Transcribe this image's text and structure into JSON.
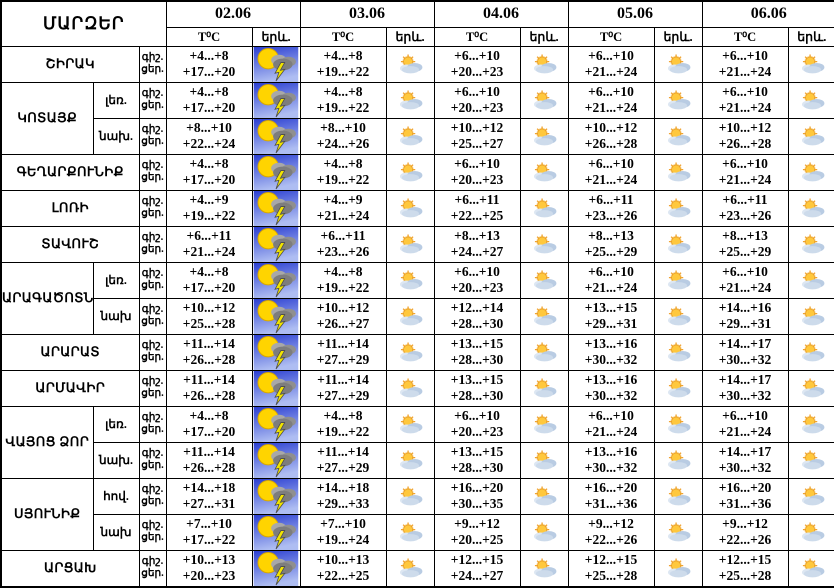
{
  "page_title": "Regional weather forecast table (Armenia)",
  "colors": {
    "background": "#ffffff",
    "border": "#000000",
    "text": "#000000",
    "thunder_icon": {
      "sky_top": "#2b3fd1",
      "sky_bottom": "#aebdf2",
      "sun": "#ffd400",
      "cloud_light": "#a8a8a8",
      "cloud_dark": "#7d7d7d",
      "lightning": "#f2e400"
    },
    "partly_icon": {
      "sun": "#ffc83d",
      "rays": "#f0a230",
      "cloud_light": "#dde7f2",
      "cloud_dark": "#b9cce3"
    }
  },
  "icon_legend": {
    "thunderstorm": "sun-cloud-lightning on blue sky background",
    "partly_cloudy": "sun-behind-cloud"
  },
  "table": {
    "corner_title": "ՄԱՐԶԵՐ",
    "dates": [
      "02.06",
      "03.06",
      "04.06",
      "05.06",
      "06.06"
    ],
    "temp_header": "T⁰C",
    "phenomenon_header": "երև.",
    "night_label": "գիշ.",
    "day_label": "ցեր.",
    "rows": [
      {
        "region": "ՇԻՐԱԿ",
        "region_span": 1,
        "sub": "",
        "cells": [
          {
            "night": "+4...+8",
            "day": "+17...+20",
            "icon": "thunderstorm"
          },
          {
            "night": "+4...+8",
            "day": "+19...+22",
            "icon": "partly_cloudy"
          },
          {
            "night": "+6...+10",
            "day": "+20...+23",
            "icon": "partly_cloudy"
          },
          {
            "night": "+6...+10",
            "day": "+21...+24",
            "icon": "partly_cloudy"
          },
          {
            "night": "+6...+10",
            "day": "+21...+24",
            "icon": "partly_cloudy"
          }
        ]
      },
      {
        "region": "ԿՈՏԱՅՔ",
        "region_span": 2,
        "sub": "լեռ.",
        "cells": [
          {
            "night": "+4...+8",
            "day": "+17...+20",
            "icon": "thunderstorm"
          },
          {
            "night": "+4...+8",
            "day": "+19...+22",
            "icon": "partly_cloudy"
          },
          {
            "night": "+6...+10",
            "day": "+20...+23",
            "icon": "partly_cloudy"
          },
          {
            "night": "+6...+10",
            "day": "+21...+24",
            "icon": "partly_cloudy"
          },
          {
            "night": "+6...+10",
            "day": "+21...+24",
            "icon": "partly_cloudy"
          }
        ]
      },
      {
        "region": "",
        "region_span": 0,
        "sub": "նախ.",
        "cells": [
          {
            "night": "+8...+10",
            "day": "+22...+24",
            "icon": "thunderstorm"
          },
          {
            "night": "+8...+10",
            "day": "+24...+26",
            "icon": "partly_cloudy"
          },
          {
            "night": "+10...+12",
            "day": "+25...+27",
            "icon": "partly_cloudy"
          },
          {
            "night": "+10...+12",
            "day": "+26...+28",
            "icon": "partly_cloudy"
          },
          {
            "night": "+10...+12",
            "day": "+26...+28",
            "icon": "partly_cloudy"
          }
        ]
      },
      {
        "region": "ԳԵՂԱՐՔՈՒՆԻՔ",
        "region_span": 1,
        "sub": "",
        "cells": [
          {
            "night": "+4...+8",
            "day": "+17...+20",
            "icon": "thunderstorm"
          },
          {
            "night": "+4...+8",
            "day": "+19...+22",
            "icon": "partly_cloudy"
          },
          {
            "night": "+6...+10",
            "day": "+20...+23",
            "icon": "partly_cloudy"
          },
          {
            "night": "+6...+10",
            "day": "+21...+24",
            "icon": "partly_cloudy"
          },
          {
            "night": "+6...+10",
            "day": "+21...+24",
            "icon": "partly_cloudy"
          }
        ]
      },
      {
        "region": "ԼՈՌԻ",
        "region_span": 1,
        "sub": "",
        "cells": [
          {
            "night": "+4...+9",
            "day": "+19...+22",
            "icon": "thunderstorm"
          },
          {
            "night": "+4...+9",
            "day": "+21...+24",
            "icon": "partly_cloudy"
          },
          {
            "night": "+6...+11",
            "day": "+22...+25",
            "icon": "partly_cloudy"
          },
          {
            "night": "+6...+11",
            "day": "+23...+26",
            "icon": "partly_cloudy"
          },
          {
            "night": "+6...+11",
            "day": "+23...+26",
            "icon": "partly_cloudy"
          }
        ]
      },
      {
        "region": "ՏԱՎՈՒՇ",
        "region_span": 1,
        "sub": "",
        "cells": [
          {
            "night": "+6...+11",
            "day": "+21...+24",
            "icon": "thunderstorm"
          },
          {
            "night": "+6...+11",
            "day": "+23...+26",
            "icon": "partly_cloudy"
          },
          {
            "night": "+8...+13",
            "day": "+24...+27",
            "icon": "partly_cloudy"
          },
          {
            "night": "+8...+13",
            "day": "+25...+29",
            "icon": "partly_cloudy"
          },
          {
            "night": "+8...+13",
            "day": "+25...+29",
            "icon": "partly_cloudy"
          }
        ]
      },
      {
        "region": "ԱՐԱԳԱԾՈՏՆ",
        "region_span": 2,
        "sub": "լեռ.",
        "cells": [
          {
            "night": "+4...+8",
            "day": "+17...+20",
            "icon": "thunderstorm"
          },
          {
            "night": "+4...+8",
            "day": "+19...+22",
            "icon": "partly_cloudy"
          },
          {
            "night": "+6...+10",
            "day": "+20...+23",
            "icon": "partly_cloudy"
          },
          {
            "night": "+6...+10",
            "day": "+21...+24",
            "icon": "partly_cloudy"
          },
          {
            "night": "+6...+10",
            "day": "+21...+24",
            "icon": "partly_cloudy"
          }
        ]
      },
      {
        "region": "",
        "region_span": 0,
        "sub": "նախ",
        "cells": [
          {
            "night": "+10...+12",
            "day": "+25...+28",
            "icon": "thunderstorm"
          },
          {
            "night": "+10...+12",
            "day": "+26...+27",
            "icon": "partly_cloudy"
          },
          {
            "night": "+12...+14",
            "day": "+28...+30",
            "icon": "partly_cloudy"
          },
          {
            "night": "+13...+15",
            "day": "+29...+31",
            "icon": "partly_cloudy"
          },
          {
            "night": "+14...+16",
            "day": "+29...+31",
            "icon": "partly_cloudy"
          }
        ]
      },
      {
        "region": "ԱՐԱՐԱՏ",
        "region_span": 1,
        "sub": "",
        "cells": [
          {
            "night": "+11...+14",
            "day": "+26...+28",
            "icon": "thunderstorm"
          },
          {
            "night": "+11...+14",
            "day": "+27...+29",
            "icon": "partly_cloudy"
          },
          {
            "night": "+13...+15",
            "day": "+28...+30",
            "icon": "partly_cloudy"
          },
          {
            "night": "+13...+16",
            "day": "+30...+32",
            "icon": "partly_cloudy"
          },
          {
            "night": "+14...+17",
            "day": "+30...+32",
            "icon": "partly_cloudy"
          }
        ]
      },
      {
        "region": "ԱՐՄԱՎԻՐ",
        "region_span": 1,
        "sub": "",
        "cells": [
          {
            "night": "+11...+14",
            "day": "+26...+28",
            "icon": "thunderstorm"
          },
          {
            "night": "+11...+14",
            "day": "+27...+29",
            "icon": "partly_cloudy"
          },
          {
            "night": "+13...+15",
            "day": "+28...+30",
            "icon": "partly_cloudy"
          },
          {
            "night": "+13...+16",
            "day": "+30...+32",
            "icon": "partly_cloudy"
          },
          {
            "night": "+14...+17",
            "day": "+30...+32",
            "icon": "partly_cloudy"
          }
        ]
      },
      {
        "region": "ՎԱՅՈՑ ՁՈՐ",
        "region_span": 2,
        "sub": "լեռ.",
        "cells": [
          {
            "night": "+4...+8",
            "day": "+17...+20",
            "icon": "thunderstorm"
          },
          {
            "night": "+4...+8",
            "day": "+19...+22",
            "icon": "partly_cloudy"
          },
          {
            "night": "+6...+10",
            "day": "+20...+23",
            "icon": "partly_cloudy"
          },
          {
            "night": "+6...+10",
            "day": "+21...+24",
            "icon": "partly_cloudy"
          },
          {
            "night": "+6...+10",
            "day": "+21...+24",
            "icon": "partly_cloudy"
          }
        ]
      },
      {
        "region": "",
        "region_span": 0,
        "sub": "նախ.",
        "cells": [
          {
            "night": "+11...+14",
            "day": "+26...+28",
            "icon": "thunderstorm"
          },
          {
            "night": "+11...+14",
            "day": "+27...+29",
            "icon": "partly_cloudy"
          },
          {
            "night": "+13...+15",
            "day": "+28...+30",
            "icon": "partly_cloudy"
          },
          {
            "night": "+13...+16",
            "day": "+30...+32",
            "icon": "partly_cloudy"
          },
          {
            "night": "+14...+17",
            "day": "+30...+32",
            "icon": "partly_cloudy"
          }
        ]
      },
      {
        "region": "ՍՅՈՒՆԻՔ",
        "region_span": 2,
        "sub": "հով.",
        "cells": [
          {
            "night": "+14...+18",
            "day": "+27...+31",
            "icon": "thunderstorm"
          },
          {
            "night": "+14...+18",
            "day": "+29...+33",
            "icon": "partly_cloudy"
          },
          {
            "night": "+16...+20",
            "day": "+30...+35",
            "icon": "partly_cloudy"
          },
          {
            "night": "+16...+20",
            "day": "+31...+36",
            "icon": "partly_cloudy"
          },
          {
            "night": "+16...+20",
            "day": "+31...+36",
            "icon": "partly_cloudy"
          }
        ]
      },
      {
        "region": "",
        "region_span": 0,
        "sub": "նախ",
        "cells": [
          {
            "night": "+7...+10",
            "day": "+17...+22",
            "icon": "thunderstorm"
          },
          {
            "night": "+7...+10",
            "day": "+19...+24",
            "icon": "partly_cloudy"
          },
          {
            "night": "+9...+12",
            "day": "+20...+25",
            "icon": "partly_cloudy"
          },
          {
            "night": "+9...+12",
            "day": "+22...+26",
            "icon": "partly_cloudy"
          },
          {
            "night": "+9...+12",
            "day": "+22...+26",
            "icon": "partly_cloudy"
          }
        ]
      },
      {
        "region": "ԱՐՑԱԽ",
        "region_span": 1,
        "sub": "",
        "cells": [
          {
            "night": "+10...+13",
            "day": "+20...+23",
            "icon": "thunderstorm"
          },
          {
            "night": "+10...+13",
            "day": "+22...+25",
            "icon": "partly_cloudy"
          },
          {
            "night": "+12...+15",
            "day": "+24...+27",
            "icon": "partly_cloudy"
          },
          {
            "night": "+12...+15",
            "day": "+25...+28",
            "icon": "partly_cloudy"
          },
          {
            "night": "+12...+15",
            "day": "+25...+28",
            "icon": "partly_cloudy"
          }
        ]
      }
    ]
  }
}
